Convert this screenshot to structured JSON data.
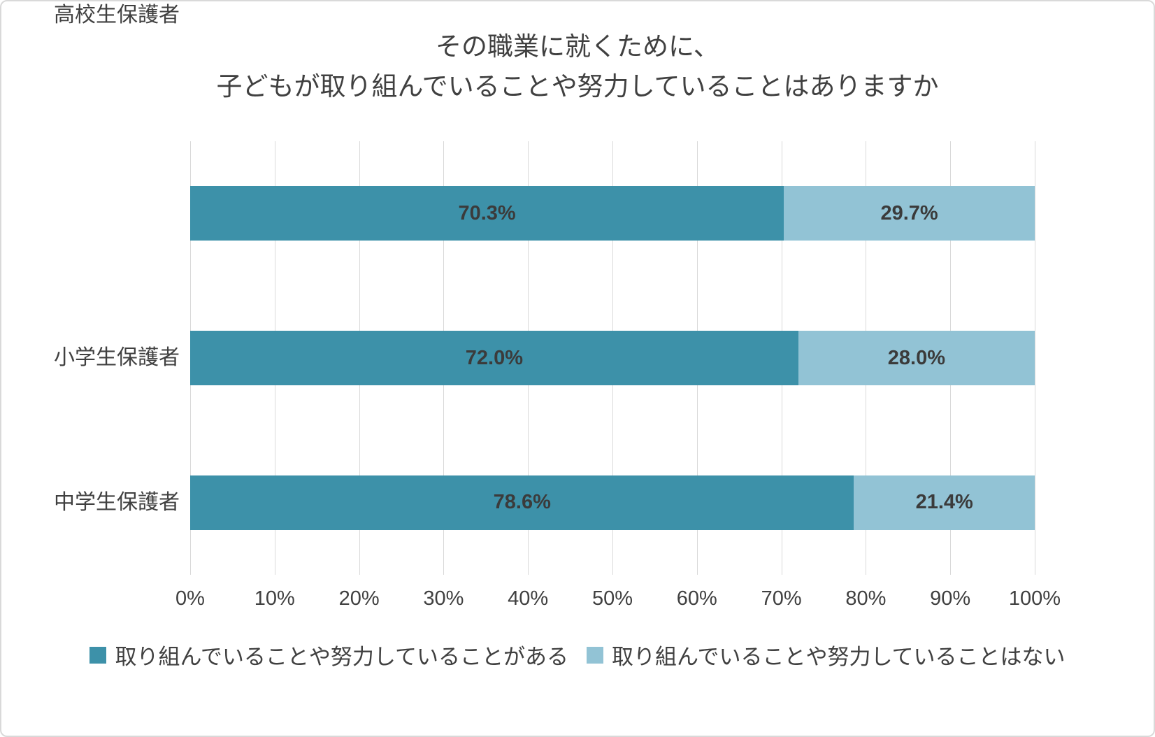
{
  "chart_data": {
    "type": "bar",
    "orientation": "horizontal",
    "stacked": true,
    "title_lines": [
      "その職業に就くために、",
      "子どもが取り組んでいることや努力していることはありますか"
    ],
    "categories": [
      "小学生保護者",
      "中学生保護者",
      "高校生保護者"
    ],
    "series": [
      {
        "name": "取り組んでいることや努力していることがある",
        "color": "#3d91a9",
        "values": [
          70.3,
          72.0,
          78.6
        ]
      },
      {
        "name": "取り組んでいることや努力していることはない",
        "color": "#92c3d5",
        "values": [
          29.7,
          28.0,
          21.4
        ]
      }
    ],
    "value_labels": [
      [
        "70.3%",
        "29.7%"
      ],
      [
        "72.0%",
        "28.0%"
      ],
      [
        "78.6%",
        "21.4%"
      ]
    ],
    "x_ticks": [
      "0%",
      "10%",
      "20%",
      "30%",
      "40%",
      "50%",
      "60%",
      "70%",
      "80%",
      "90%",
      "100%"
    ],
    "xlim": [
      0,
      100
    ],
    "grid": true,
    "legend_position": "bottom"
  },
  "colors": {
    "gridline": "#d9d9d9",
    "text": "#404040",
    "border": "#d9d9d9",
    "background": "#ffffff"
  }
}
